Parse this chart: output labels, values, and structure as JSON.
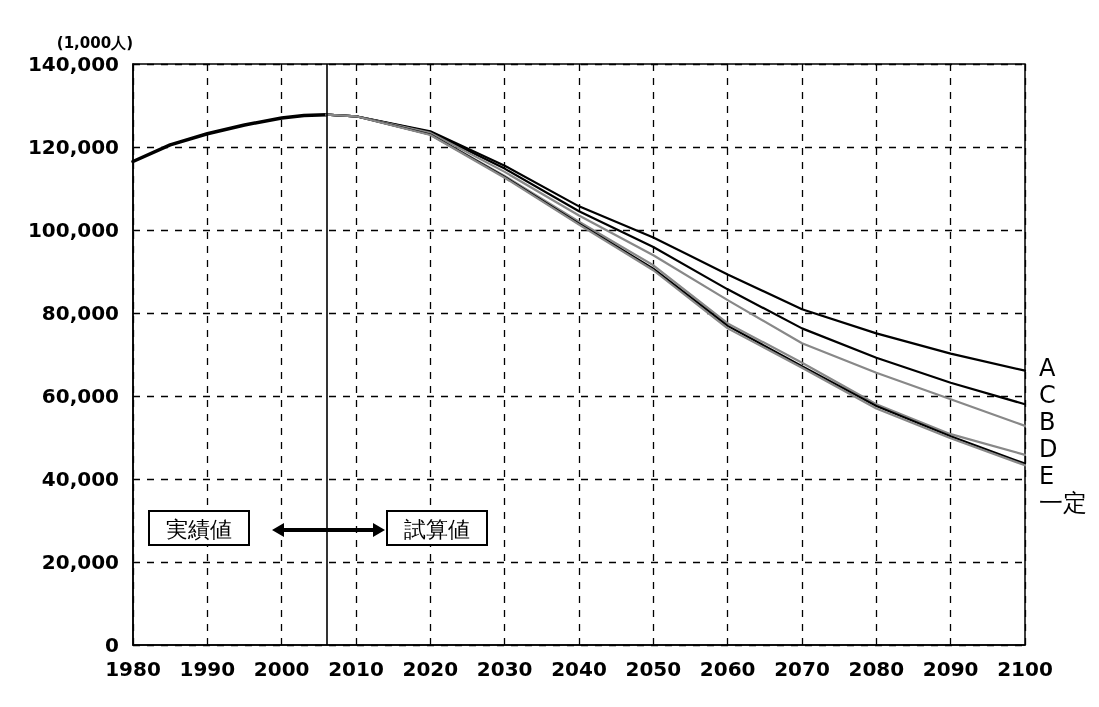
{
  "chart_data": {
    "type": "line",
    "ylabel": "(1,000人)",
    "xlim": [
      1980,
      2100
    ],
    "xticks": [
      1980,
      1990,
      2000,
      2010,
      2020,
      2030,
      2040,
      2050,
      2060,
      2070,
      2080,
      2090,
      2100
    ],
    "ylim": [
      0,
      140000
    ],
    "yticks": [
      {
        "value": 0,
        "label": "0"
      },
      {
        "value": 20000,
        "label": "20,000"
      },
      {
        "value": 40000,
        "label": "40,000"
      },
      {
        "value": 60000,
        "label": "60,000"
      },
      {
        "value": 80000,
        "label": "80,000"
      },
      {
        "value": 100000,
        "label": "100,000"
      },
      {
        "value": 120000,
        "label": "120,000"
      },
      {
        "value": 140000,
        "label": "140,000"
      }
    ],
    "grid": true,
    "marker": "none",
    "line_style": "solid",
    "legend": false,
    "ref_lines": [
      {
        "axis": "x",
        "value": 2006,
        "color": "#000000",
        "line_style": "solid"
      }
    ],
    "annotations": [
      "実績値",
      "試算値"
    ],
    "series": [
      {
        "color": "#000000",
        "x": [
          1980,
          1985,
          1990,
          1995,
          2000,
          2003,
          2006
        ],
        "values": [
          116500,
          120500,
          123200,
          125300,
          127000,
          127600,
          127800
        ]
      },
      {
        "name": "A",
        "color": "#000000",
        "x": [
          2006,
          2010,
          2020,
          2030,
          2040,
          2050,
          2060,
          2070,
          2080,
          2090,
          2100
        ],
        "values": [
          127800,
          127400,
          123800,
          115500,
          105700,
          98200,
          89300,
          80900,
          75100,
          70200,
          66100
        ]
      },
      {
        "name": "C",
        "color": "#000000",
        "x": [
          2006,
          2010,
          2020,
          2030,
          2040,
          2050,
          2060,
          2070,
          2080,
          2090,
          2100
        ],
        "values": [
          127800,
          127400,
          123600,
          114800,
          104500,
          95900,
          85700,
          76300,
          69200,
          63200,
          58000
        ]
      },
      {
        "name": "B",
        "color": "#888888",
        "x": [
          2006,
          2010,
          2020,
          2030,
          2040,
          2050,
          2060,
          2070,
          2080,
          2090,
          2100
        ],
        "values": [
          127800,
          127400,
          123400,
          114000,
          103500,
          93900,
          83100,
          72700,
          65600,
          59200,
          52800
        ]
      },
      {
        "name": "D",
        "color": "#888888",
        "x": [
          2006,
          2010,
          2020,
          2030,
          2040,
          2050,
          2060,
          2070,
          2080,
          2090,
          2100
        ],
        "values": [
          127800,
          127400,
          123000,
          113000,
          102000,
          91500,
          77500,
          68000,
          58000,
          50800,
          45800
        ]
      },
      {
        "name": "E",
        "color": "#000000",
        "x": [
          2006,
          2010,
          2020,
          2030,
          2040,
          2050,
          2060,
          2070,
          2080,
          2090,
          2100
        ],
        "values": [
          127800,
          127400,
          123000,
          112800,
          101500,
          90700,
          76900,
          67200,
          57600,
          50300,
          43700
        ]
      },
      {
        "name": "一定",
        "color": "#888888",
        "x": [
          2006,
          2010,
          2020,
          2030,
          2040,
          2050,
          2060,
          2070,
          2080,
          2090,
          2100
        ],
        "values": [
          127800,
          127400,
          122900,
          112600,
          101300,
          90300,
          76300,
          66800,
          57000,
          49800,
          43300
        ]
      }
    ]
  }
}
